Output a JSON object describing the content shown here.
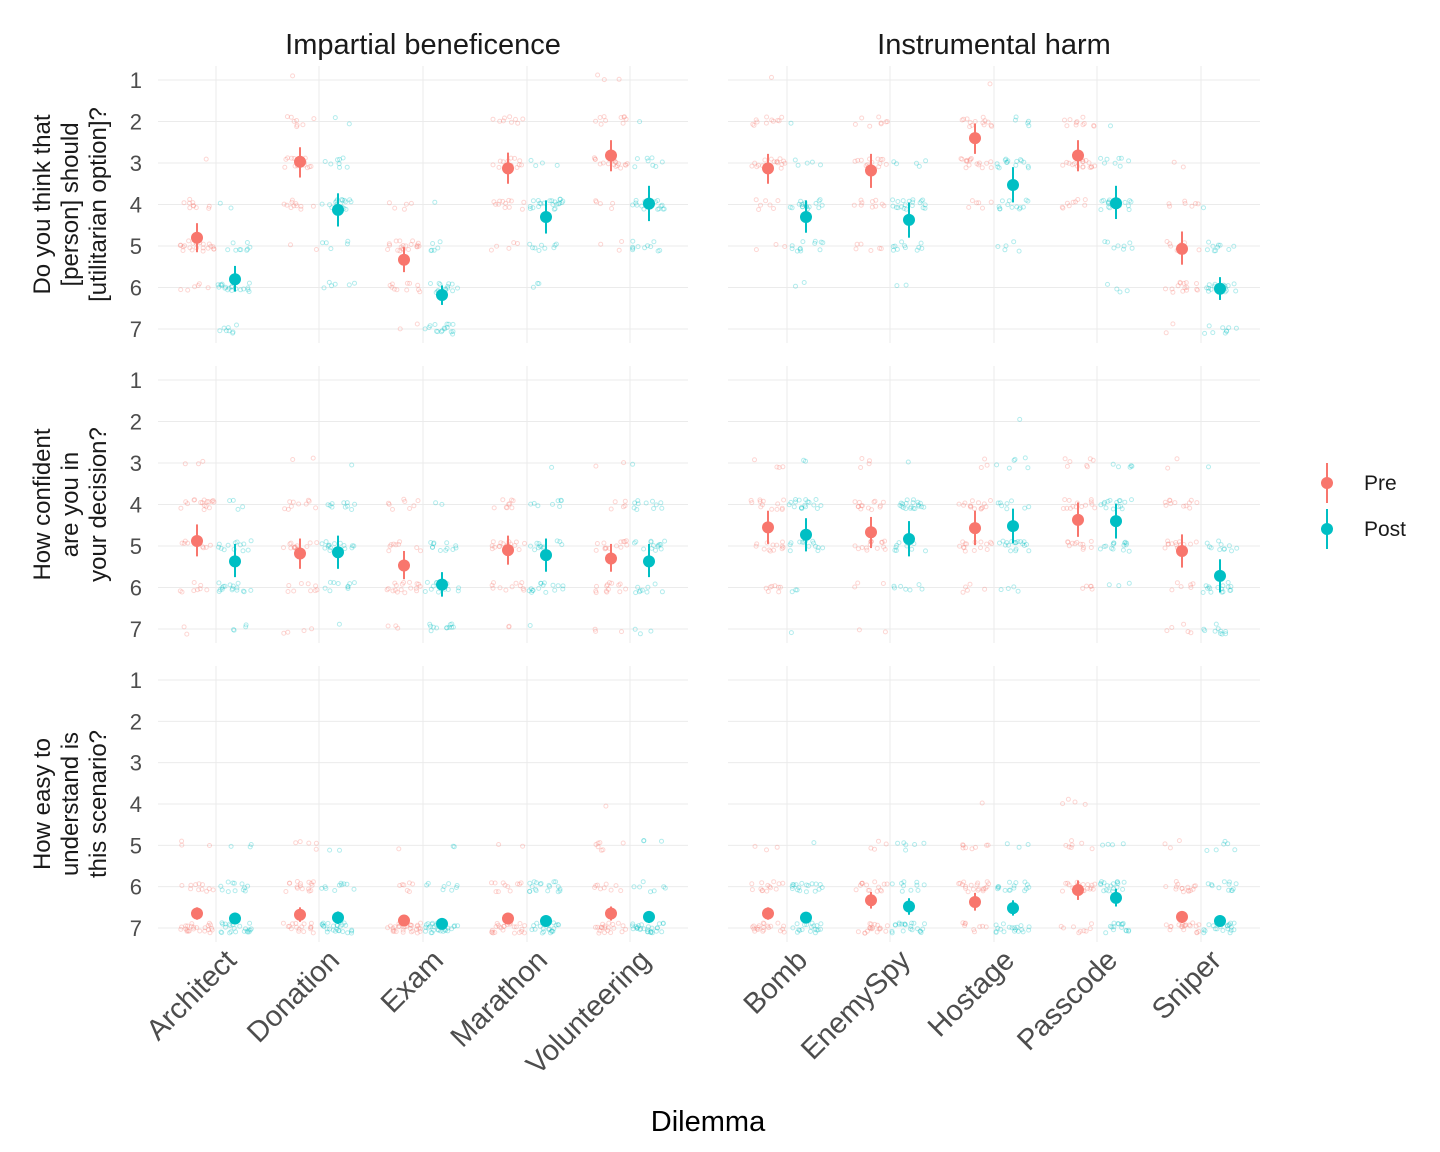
{
  "chart_data": {
    "type": "scatter",
    "xlabel": "Dilemma",
    "ylim": [
      1,
      7
    ],
    "yticks": [
      1,
      2,
      3,
      4,
      5,
      6,
      7
    ],
    "grid": true,
    "legend_position": "right",
    "series": [
      {
        "name": "Pre",
        "color": "#F8766D"
      },
      {
        "name": "Post",
        "color": "#00BFC4"
      }
    ],
    "facet_columns": [
      {
        "title": "Impartial beneficence",
        "categories": [
          "Architect",
          "Donation",
          "Exam",
          "Marathon",
          "Volunteering"
        ]
      },
      {
        "title": "Instrumental harm",
        "categories": [
          "Bomb",
          "EnemySpy",
          "Hostage",
          "Passcode",
          "Sniper"
        ]
      }
    ],
    "facet_rows": [
      {
        "label_lines": [
          "Do you think that",
          "[person] should",
          "[utilitarian option]?"
        ],
        "panels": [
          {
            "pre": [
              {
                "mean": 4.8,
                "lo": 4.45,
                "hi": 5.15
              },
              {
                "mean": 2.97,
                "lo": 2.62,
                "hi": 3.35
              },
              {
                "mean": 5.33,
                "lo": 5.03,
                "hi": 5.63
              },
              {
                "mean": 3.13,
                "lo": 2.75,
                "hi": 3.5
              },
              {
                "mean": 2.82,
                "lo": 2.45,
                "hi": 3.2
              }
            ],
            "post": [
              {
                "mean": 5.8,
                "lo": 5.48,
                "hi": 6.1
              },
              {
                "mean": 4.13,
                "lo": 3.73,
                "hi": 4.53
              },
              {
                "mean": 6.18,
                "lo": 5.95,
                "hi": 6.42
              },
              {
                "mean": 4.3,
                "lo": 3.9,
                "hi": 4.7
              },
              {
                "mean": 3.98,
                "lo": 3.55,
                "hi": 4.4
              }
            ]
          },
          {
            "pre": [
              {
                "mean": 3.13,
                "lo": 2.78,
                "hi": 3.5
              },
              {
                "mean": 3.18,
                "lo": 2.78,
                "hi": 3.6
              },
              {
                "mean": 2.4,
                "lo": 2.05,
                "hi": 2.78
              },
              {
                "mean": 2.82,
                "lo": 2.45,
                "hi": 3.2
              },
              {
                "mean": 5.07,
                "lo": 4.65,
                "hi": 5.45
              }
            ],
            "post": [
              {
                "mean": 4.3,
                "lo": 3.9,
                "hi": 4.68
              },
              {
                "mean": 4.37,
                "lo": 3.95,
                "hi": 4.8
              },
              {
                "mean": 3.53,
                "lo": 3.1,
                "hi": 3.95
              },
              {
                "mean": 3.97,
                "lo": 3.55,
                "hi": 4.35
              },
              {
                "mean": 6.03,
                "lo": 5.75,
                "hi": 6.3
              }
            ]
          }
        ]
      },
      {
        "label_lines": [
          "How confident",
          "are you in",
          "your decision?"
        ],
        "panels": [
          {
            "pre": [
              {
                "mean": 4.88,
                "lo": 4.48,
                "hi": 5.25
              },
              {
                "mean": 5.18,
                "lo": 4.82,
                "hi": 5.55
              },
              {
                "mean": 5.47,
                "lo": 5.12,
                "hi": 5.8
              },
              {
                "mean": 5.1,
                "lo": 4.75,
                "hi": 5.45
              },
              {
                "mean": 5.3,
                "lo": 4.95,
                "hi": 5.62
              }
            ],
            "post": [
              {
                "mean": 5.37,
                "lo": 4.95,
                "hi": 5.75
              },
              {
                "mean": 5.15,
                "lo": 4.75,
                "hi": 5.55
              },
              {
                "mean": 5.93,
                "lo": 5.63,
                "hi": 6.22
              },
              {
                "mean": 5.22,
                "lo": 4.82,
                "hi": 5.62
              },
              {
                "mean": 5.37,
                "lo": 4.95,
                "hi": 5.75
              }
            ]
          },
          {
            "pre": [
              {
                "mean": 4.55,
                "lo": 4.15,
                "hi": 4.95
              },
              {
                "mean": 4.67,
                "lo": 4.3,
                "hi": 5.05
              },
              {
                "mean": 4.57,
                "lo": 4.15,
                "hi": 4.98
              },
              {
                "mean": 4.37,
                "lo": 3.95,
                "hi": 4.78
              },
              {
                "mean": 5.12,
                "lo": 4.72,
                "hi": 5.52
              }
            ],
            "post": [
              {
                "mean": 4.73,
                "lo": 4.33,
                "hi": 5.13
              },
              {
                "mean": 4.83,
                "lo": 4.4,
                "hi": 5.25
              },
              {
                "mean": 4.52,
                "lo": 4.1,
                "hi": 4.93
              },
              {
                "mean": 4.4,
                "lo": 3.98,
                "hi": 4.82
              },
              {
                "mean": 5.72,
                "lo": 5.32,
                "hi": 6.12
              }
            ]
          }
        ]
      },
      {
        "label_lines": [
          "How easy to",
          "understand is",
          "this scenario?"
        ],
        "panels": [
          {
            "pre": [
              {
                "mean": 6.65,
                "lo": 6.5,
                "hi": 6.8
              },
              {
                "mean": 6.68,
                "lo": 6.5,
                "hi": 6.85
              },
              {
                "mean": 6.82,
                "lo": 6.7,
                "hi": 6.94
              },
              {
                "mean": 6.77,
                "lo": 6.65,
                "hi": 6.9
              },
              {
                "mean": 6.65,
                "lo": 6.48,
                "hi": 6.82
              }
            ],
            "post": [
              {
                "mean": 6.77,
                "lo": 6.63,
                "hi": 6.9
              },
              {
                "mean": 6.75,
                "lo": 6.6,
                "hi": 6.9
              },
              {
                "mean": 6.9,
                "lo": 6.82,
                "hi": 6.98
              },
              {
                "mean": 6.83,
                "lo": 6.72,
                "hi": 6.95
              },
              {
                "mean": 6.73,
                "lo": 6.6,
                "hi": 6.88
              }
            ]
          },
          {
            "pre": [
              {
                "mean": 6.65,
                "lo": 6.5,
                "hi": 6.8
              },
              {
                "mean": 6.33,
                "lo": 6.13,
                "hi": 6.53
              },
              {
                "mean": 6.37,
                "lo": 6.15,
                "hi": 6.58
              },
              {
                "mean": 6.08,
                "lo": 5.85,
                "hi": 6.32
              },
              {
                "mean": 6.73,
                "lo": 6.6,
                "hi": 6.88
              }
            ],
            "post": [
              {
                "mean": 6.75,
                "lo": 6.62,
                "hi": 6.88
              },
              {
                "mean": 6.48,
                "lo": 6.28,
                "hi": 6.68
              },
              {
                "mean": 6.52,
                "lo": 6.33,
                "hi": 6.7
              },
              {
                "mean": 6.27,
                "lo": 6.05,
                "hi": 6.48
              },
              {
                "mean": 6.83,
                "lo": 6.72,
                "hi": 6.95
              }
            ]
          }
        ]
      }
    ]
  }
}
